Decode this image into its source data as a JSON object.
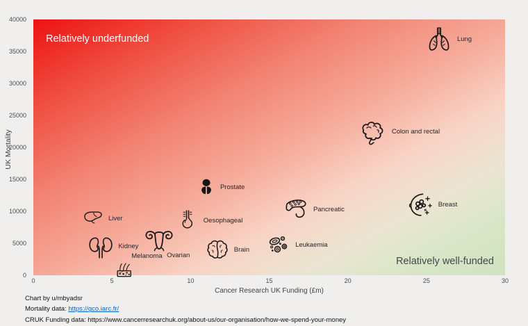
{
  "page": {
    "background": "#f0efed"
  },
  "quadrants": {
    "underfunded": "Relatively underfunded",
    "wellfunded": "Relatively well-funded"
  },
  "chart_data": {
    "type": "scatter",
    "title": "",
    "xlabel": "Cancer Research UK Funding (£m)",
    "ylabel": "UK Mortality",
    "xlim": [
      0,
      30
    ],
    "ylim": [
      0,
      40000
    ],
    "x_ticks": [
      0,
      5,
      10,
      15,
      20,
      25,
      30
    ],
    "y_ticks": [
      0,
      5000,
      10000,
      15000,
      20000,
      25000,
      30000,
      35000,
      40000
    ],
    "grid": false,
    "legend": "none",
    "background_gradient": {
      "top_left": "#ee1212",
      "bottom_right": "#cfe2c0"
    },
    "marker_style": "black line-art organ icons",
    "points": [
      {
        "id": "lung",
        "label": "Lung",
        "x": 25.8,
        "y": 36800,
        "size": 42,
        "label_pos": "right"
      },
      {
        "id": "colon",
        "label": "Colon and rectal",
        "x": 21.6,
        "y": 22400,
        "size": 44,
        "label_pos": "right"
      },
      {
        "id": "prostate",
        "label": "Prostate",
        "x": 11.0,
        "y": 13700,
        "size": 30,
        "label_pos": "right"
      },
      {
        "id": "breast",
        "label": "Breast",
        "x": 24.6,
        "y": 11000,
        "size": 42,
        "label_pos": "right"
      },
      {
        "id": "pancreatic",
        "label": "Pancreatic",
        "x": 16.7,
        "y": 10200,
        "size": 40,
        "label_pos": "right"
      },
      {
        "id": "liver",
        "label": "Liver",
        "x": 3.8,
        "y": 8800,
        "size": 34,
        "label_pos": "right"
      },
      {
        "id": "oesophageal",
        "label": "Oesophageal",
        "x": 9.8,
        "y": 8500,
        "size": 36,
        "label_pos": "right"
      },
      {
        "id": "ovarian",
        "label": "Ovarian",
        "x": 8.0,
        "y": 5200,
        "size": 44,
        "label_pos": "below-right"
      },
      {
        "id": "leukaemia",
        "label": "Leukaemia",
        "x": 15.6,
        "y": 4700,
        "size": 38,
        "label_pos": "right"
      },
      {
        "id": "kidney",
        "label": "Kidney",
        "x": 4.3,
        "y": 4500,
        "size": 40,
        "label_pos": "right"
      },
      {
        "id": "brain",
        "label": "Brain",
        "x": 11.7,
        "y": 3900,
        "size": 38,
        "label_pos": "right"
      },
      {
        "id": "melanoma",
        "label": "Melanoma",
        "x": 5.8,
        "y": 1100,
        "size": 34,
        "label_pos": "above-right"
      }
    ]
  },
  "footer": {
    "line1": "Chart by u/mbyadsr",
    "line2_prefix": "Mortality data: ",
    "line2_link": "https://gco.iarc.fr/",
    "line3": "CRUK Funding data: https://www.cancerresearchuk.org/about-us/our-organisation/how-we-spend-your-money",
    "link_color": "#0563c1"
  }
}
